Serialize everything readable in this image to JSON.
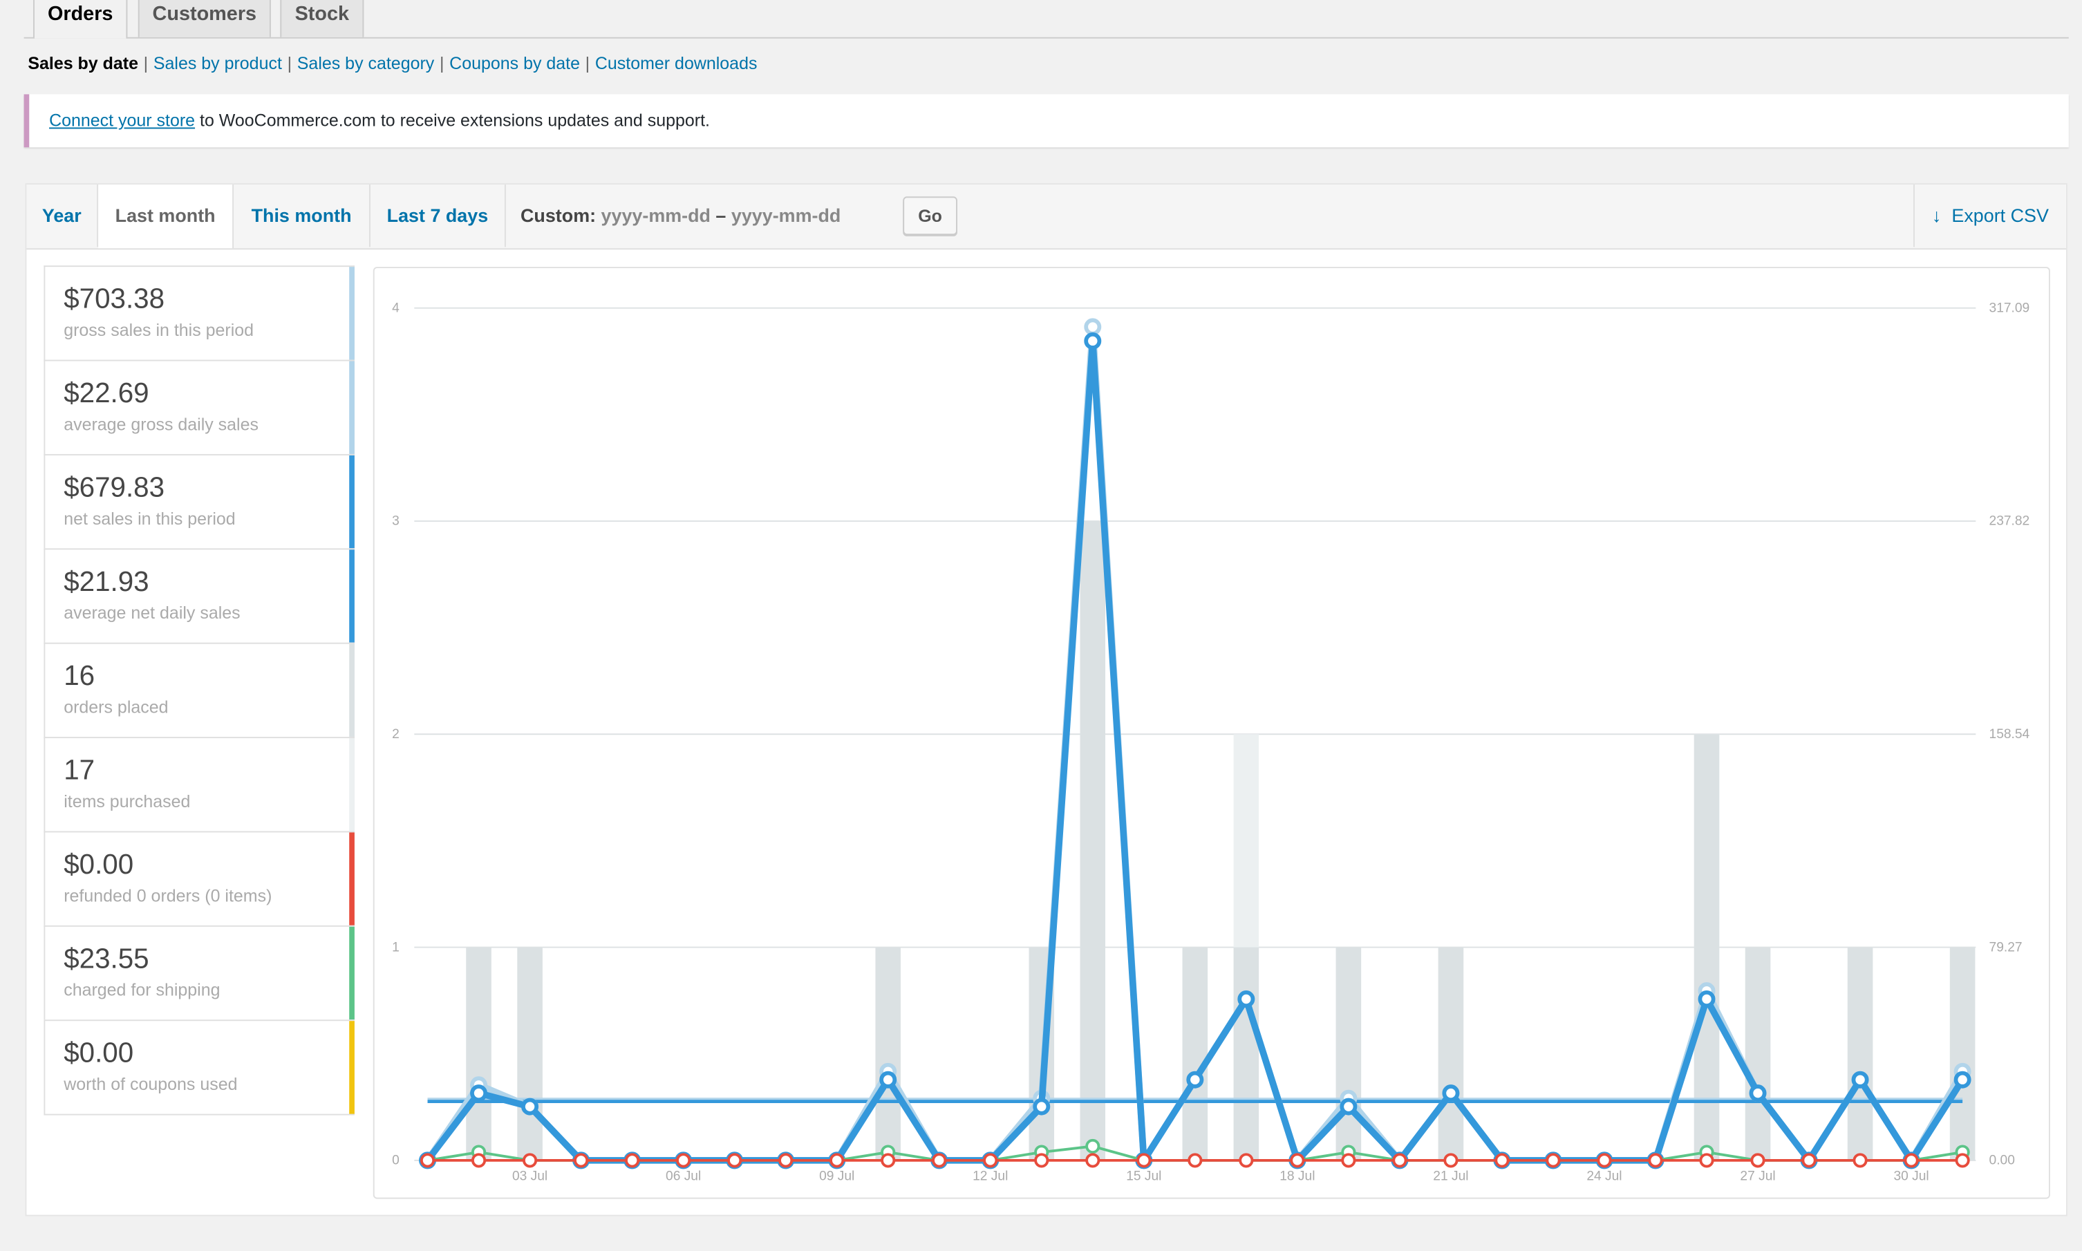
{
  "nav_tabs": [
    {
      "label": "Orders",
      "active": true
    },
    {
      "label": "Customers"
    },
    {
      "label": "Stock"
    }
  ],
  "subnav": {
    "current": "Sales by date",
    "links": [
      "Sales by product",
      "Sales by category",
      "Coupons by date",
      "Customer downloads"
    ]
  },
  "notice": {
    "link": "Connect your store",
    "text": " to WooCommerce.com to receive extensions updates and support."
  },
  "range_tabs": [
    {
      "label": "Year"
    },
    {
      "label": "Last month",
      "active": true
    },
    {
      "label": "This month"
    },
    {
      "label": "Last 7 days"
    }
  ],
  "custom": {
    "label": "Custom:",
    "from_placeholder": "yyyy-mm-dd",
    "separator": "–",
    "to_placeholder": "yyyy-mm-dd",
    "go": "Go"
  },
  "export": {
    "icon": "arrow-down-icon",
    "label": "Export CSV"
  },
  "legend": [
    {
      "amount": "$703.38",
      "label": "gross sales in this period",
      "color": "#b1d4ea"
    },
    {
      "amount": "$22.69",
      "label": "average gross daily sales",
      "color": "#b1d4ea"
    },
    {
      "amount": "$679.83",
      "label": "net sales in this period",
      "color": "#3498db"
    },
    {
      "amount": "$21.93",
      "label": "average net daily sales",
      "color": "#3498db"
    },
    {
      "amount": "16",
      "label": "orders placed",
      "color": "#dbe1e3"
    },
    {
      "amount": "17",
      "label": "items purchased",
      "color": "#ecf0f1"
    },
    {
      "amount": "$0.00",
      "label": "refunded 0 orders (0 items)",
      "color": "#e74c3c"
    },
    {
      "amount": "$23.55",
      "label": "charged for shipping",
      "color": "#5cc488"
    },
    {
      "amount": "$0.00",
      "label": "worth of coupons used",
      "color": "#f1c40f"
    }
  ],
  "chart_data": {
    "type": "bar+line",
    "x_days": [
      1,
      2,
      3,
      4,
      5,
      6,
      7,
      8,
      9,
      10,
      11,
      12,
      13,
      14,
      15,
      16,
      17,
      18,
      19,
      20,
      21,
      22,
      23,
      24,
      25,
      26,
      27,
      28,
      29,
      30,
      31
    ],
    "x_tick_labels": [
      "03 Jul",
      "06 Jul",
      "09 Jul",
      "12 Jul",
      "15 Jul",
      "18 Jul",
      "21 Jul",
      "24 Jul",
      "27 Jul",
      "30 Jul"
    ],
    "left_axis": {
      "ticks": [
        "0",
        "1",
        "2",
        "3",
        "4"
      ],
      "ylim": [
        0,
        4
      ]
    },
    "right_axis": {
      "ticks": [
        "0.00",
        "79.27",
        "158.54",
        "237.82",
        "317.09"
      ],
      "ylim": [
        0,
        317.09
      ]
    },
    "grid": true,
    "series": [
      {
        "key": "items",
        "kind": "bar",
        "axis": "left",
        "color": "#ecf0f1",
        "values": [
          0,
          1,
          1,
          0,
          0,
          0,
          0,
          0,
          0,
          1,
          0,
          0,
          1,
          3,
          0,
          1,
          2,
          0,
          1,
          0,
          1,
          0,
          0,
          0,
          0,
          2,
          1,
          0,
          1,
          0,
          1
        ]
      },
      {
        "key": "orders",
        "kind": "bar",
        "axis": "left",
        "color": "#dbe1e3",
        "values": [
          0,
          1,
          1,
          0,
          0,
          0,
          0,
          0,
          0,
          1,
          0,
          0,
          1,
          3,
          0,
          1,
          1,
          0,
          1,
          0,
          1,
          0,
          0,
          0,
          0,
          2,
          1,
          0,
          1,
          0,
          1
        ]
      },
      {
        "key": "gross",
        "kind": "line",
        "axis": "right",
        "color": "#b1d4ea",
        "values": [
          0,
          28.05,
          20,
          0,
          0,
          0,
          0,
          0,
          0,
          33.05,
          0,
          0,
          23.05,
          310.08,
          0,
          30,
          60,
          0,
          23.05,
          0,
          25,
          0,
          0,
          0,
          0,
          63.05,
          25,
          0,
          30,
          0,
          33.05
        ]
      },
      {
        "key": "net",
        "kind": "line",
        "axis": "right",
        "color": "#3498db",
        "values": [
          0,
          25,
          20,
          0,
          0,
          0,
          0,
          0,
          0,
          30,
          0,
          0,
          20,
          304.83,
          0,
          30,
          60,
          0,
          20,
          0,
          25,
          0,
          0,
          0,
          0,
          60,
          25,
          0,
          30,
          0,
          30
        ]
      },
      {
        "key": "shipping",
        "kind": "line",
        "axis": "right",
        "color": "#5cc488",
        "values": [
          0,
          3.05,
          0,
          0,
          0,
          0,
          0,
          0,
          0,
          3.05,
          0,
          0,
          3.05,
          5.25,
          0,
          0,
          0,
          0,
          3.05,
          0,
          0,
          0,
          0,
          0,
          0,
          3.05,
          0,
          0,
          0,
          0,
          3.05
        ]
      },
      {
        "key": "refunds",
        "kind": "line",
        "axis": "right",
        "color": "#e74c3c",
        "values": [
          0,
          0,
          0,
          0,
          0,
          0,
          0,
          0,
          0,
          0,
          0,
          0,
          0,
          0,
          0,
          0,
          0,
          0,
          0,
          0,
          0,
          0,
          0,
          0,
          0,
          0,
          0,
          0,
          0,
          0,
          0
        ]
      }
    ],
    "averages": [
      {
        "key": "gross_avg",
        "value": 22.69,
        "color": "#b1d4ea"
      },
      {
        "key": "net_avg",
        "value": 21.93,
        "color": "#3498db"
      }
    ]
  }
}
